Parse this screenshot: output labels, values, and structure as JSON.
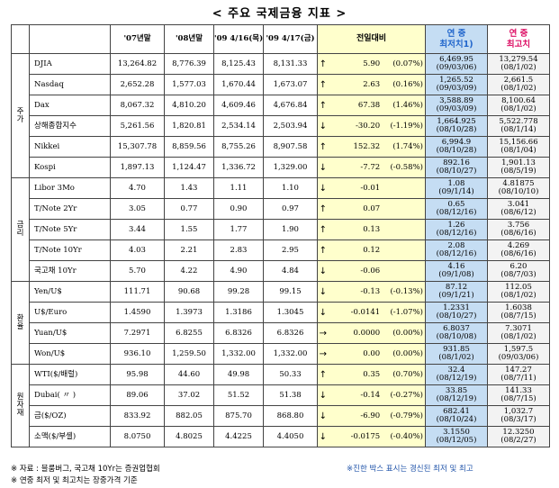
{
  "title": "< 주요 국제금융 지표 >",
  "headers": {
    "y2007": "'07년말",
    "y2008": "'08년말",
    "d0416": "'09 4/16(목)",
    "d0417": "'09 4/17(금)",
    "change": "전일대비",
    "low": [
      "연 중",
      "최저치1)"
    ],
    "high": [
      "연 중",
      "최고치"
    ]
  },
  "groups": [
    {
      "label": "주\n가",
      "rows": [
        {
          "name": "DJIA",
          "v07": "13,264.82",
          "v08": "8,776.39",
          "v16": "8,125.43",
          "v17": "8,131.33",
          "dir": "up",
          "chg": "5.90",
          "pct": "(0.07%)",
          "low": "6,469.95",
          "lowd": "(09/03/06)",
          "high": "13,279.54",
          "highd": "(08/1/02)"
        },
        {
          "name": "Nasdaq",
          "v07": "2,652.28",
          "v08": "1,577.03",
          "v16": "1,670.44",
          "v17": "1,673.07",
          "dir": "up",
          "chg": "2.63",
          "pct": "(0.16%)",
          "low": "1,265.52",
          "lowd": "(09/03/09)",
          "high": "2,661.5",
          "highd": "(08/1/02)"
        },
        {
          "name": "Dax",
          "v07": "8,067.32",
          "v08": "4,810.20",
          "v16": "4,609.46",
          "v17": "4,676.84",
          "dir": "up",
          "chg": "67.38",
          "pct": "(1.46%)",
          "low": "3,588.89",
          "lowd": "(09/03/09)",
          "high": "8,100.64",
          "highd": "(08/1/02)"
        },
        {
          "name": "상해종합지수",
          "v07": "5,261.56",
          "v08": "1,820.81",
          "v16": "2,534.14",
          "v17": "2,503.94",
          "dir": "down",
          "chg": "-30.20",
          "pct": "(-1.19%)",
          "low": "1,664.925",
          "lowd": "(08/10/28)",
          "high": "5,522.778",
          "highd": "(08/1/14)"
        },
        {
          "name": "Nikkei",
          "v07": "15,307.78",
          "v08": "8,859.56",
          "v16": "8,755.26",
          "v17": "8,907.58",
          "dir": "up",
          "chg": "152.32",
          "pct": "(1.74%)",
          "low": "6,994.9",
          "lowd": "(08/10/28)",
          "high": "15,156.66",
          "highd": "(08/1/04)"
        },
        {
          "name": "Kospi",
          "v07": "1,897.13",
          "v08": "1,124.47",
          "v16": "1,336.72",
          "v17": "1,329.00",
          "dir": "down",
          "chg": "-7.72",
          "pct": "(-0.58%)",
          "low": "892.16",
          "lowd": "(08/10/27)",
          "high": "1,901.13",
          "highd": "(08/5/19)"
        }
      ]
    },
    {
      "label": "금\n리",
      "rows": [
        {
          "name": "Libor 3Mo",
          "v07": "4.70",
          "v08": "1.43",
          "v16": "1.11",
          "v17": "1.10",
          "dir": "down",
          "chg": "-0.01",
          "pct": "",
          "low": "1.08",
          "lowd": "(09/1/14)",
          "high": "4.81875",
          "highd": "(08/10/10)"
        },
        {
          "name": "T/Note 2Yr",
          "v07": "3.05",
          "v08": "0.77",
          "v16": "0.90",
          "v17": "0.97",
          "dir": "up",
          "chg": "0.07",
          "pct": "",
          "low": "0.65",
          "lowd": "(08/12/16)",
          "high": "3.041",
          "highd": "(08/6/12)"
        },
        {
          "name": "T/Note 5Yr",
          "v07": "3.44",
          "v08": "1.55",
          "v16": "1.77",
          "v17": "1.90",
          "dir": "up",
          "chg": "0.13",
          "pct": "",
          "low": "1.26",
          "lowd": "(08/12/16)",
          "high": "3.756",
          "highd": "(08/6/16)"
        },
        {
          "name": "T/Note 10Yr",
          "v07": "4.03",
          "v08": "2.21",
          "v16": "2.83",
          "v17": "2.95",
          "dir": "up",
          "chg": "0.12",
          "pct": "",
          "low": "2.08",
          "lowd": "(08/12/16)",
          "high": "4.269",
          "highd": "(08/6/16)"
        },
        {
          "name": "국고채 10Yr",
          "v07": "5.70",
          "v08": "4.22",
          "v16": "4.90",
          "v17": "4.84",
          "dir": "down",
          "chg": "-0.06",
          "pct": "",
          "low": "4.16",
          "lowd": "(09/1/08)",
          "high": "6.20",
          "highd": "(08/7/03)"
        }
      ]
    },
    {
      "label": "환\n율",
      "rows": [
        {
          "name": "Yen/U$",
          "v07": "111.71",
          "v08": "90.68",
          "v16": "99.28",
          "v17": "99.15",
          "dir": "down",
          "chg": "-0.13",
          "pct": "(-0.13%)",
          "low": "87.12",
          "lowd": "(09/1/21)",
          "high": "112.05",
          "highd": "(08/1/02)"
        },
        {
          "name": "U$/Euro",
          "v07": "1.4590",
          "v08": "1.3973",
          "v16": "1.3186",
          "v17": "1.3045",
          "dir": "down",
          "chg": "-0.0141",
          "pct": "(-1.07%)",
          "low": "1.2331",
          "lowd": "(08/10/27)",
          "high": "1.6038",
          "highd": "(08/7/15)"
        },
        {
          "name": "Yuan/U$",
          "v07": "7.2971",
          "v08": "6.8255",
          "v16": "6.8326",
          "v17": "6.8326",
          "dir": "flat",
          "chg": "0.0000",
          "pct": "(0.00%)",
          "low": "6.8037",
          "lowd": "(08/10/08)",
          "high": "7.3071",
          "highd": "(08/1/02)"
        },
        {
          "name": "Won/U$",
          "v07": "936.10",
          "v08": "1,259.50",
          "v16": "1,332.00",
          "v17": "1,332.00",
          "dir": "flat",
          "chg": "0.00",
          "pct": "(0.00%)",
          "low": "931.85",
          "lowd": "(08/1/02)",
          "high": "1,597.5",
          "highd": "(09/03/06)"
        }
      ]
    },
    {
      "label": "원\n자\n재",
      "rows": [
        {
          "name": "WTI($/배럴)",
          "v07": "95.98",
          "v08": "44.60",
          "v16": "49.98",
          "v17": "50.33",
          "dir": "up",
          "chg": "0.35",
          "pct": "(0.70%)",
          "low": "32.4",
          "lowd": "(08/12/19)",
          "high": "147.27",
          "highd": "(08/7/11)"
        },
        {
          "name": "Dubai(   〃   )",
          "v07": "89.06",
          "v08": "37.02",
          "v16": "51.52",
          "v17": "51.38",
          "dir": "down",
          "chg": "-0.14",
          "pct": "(-0.27%)",
          "low": "33.85",
          "lowd": "(08/12/19)",
          "high": "141.33",
          "highd": "(08/7/15)"
        },
        {
          "name": "금($/OZ)",
          "v07": "833.92",
          "v08": "882.05",
          "v16": "875.70",
          "v17": "868.80",
          "dir": "down",
          "chg": "-6.90",
          "pct": "(-0.79%)",
          "low": "682.41",
          "lowd": "(08/10/24)",
          "high": "1,032.7",
          "highd": "(08/3/17)"
        },
        {
          "name": "소맥($/부셸)",
          "v07": "8.0750",
          "v08": "4.8025",
          "v16": "4.4225",
          "v17": "4.4050",
          "dir": "down",
          "chg": "-0.0175",
          "pct": "(-0.40%)",
          "low": "3.1550",
          "lowd": "(08/12/05)",
          "high": "12.3250",
          "highd": "(08/2/27)"
        }
      ]
    }
  ],
  "footnotes": {
    "note1": "※ 자료 : 블룸버그, 국고채 10Yr는 증권업협회",
    "note2": "※ 연중 최저 및 최고치는 장중가격 기준",
    "note3": "※진한 박스 표시는 경신된 최저 및 최고"
  },
  "arrows": {
    "up": "↑",
    "down": "↓",
    "flat": "→"
  }
}
